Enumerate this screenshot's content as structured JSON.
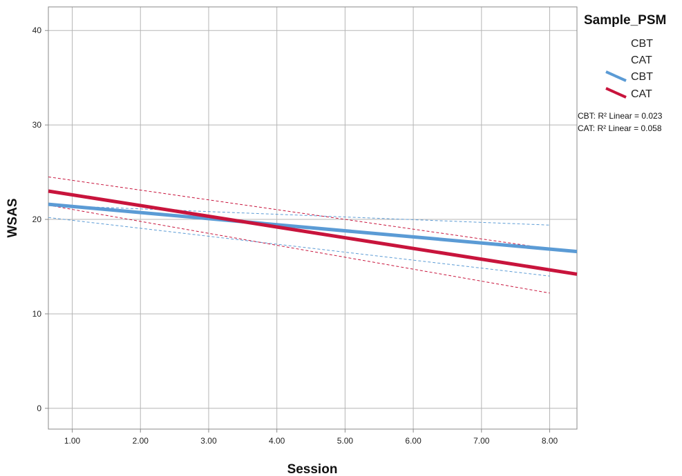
{
  "chart_data": {
    "type": "scatter",
    "title": "",
    "xlabel": "Session",
    "ylabel": "WSAS",
    "xlim": [
      0.65,
      8.4
    ],
    "ylim": [
      -2.2,
      42.5
    ],
    "x_ticks": [
      1,
      2,
      3,
      4,
      5,
      6,
      7,
      8
    ],
    "x_tick_labels": [
      "1.00",
      "2.00",
      "3.00",
      "4.00",
      "5.00",
      "6.00",
      "7.00",
      "8.00"
    ],
    "y_ticks": [
      0,
      10,
      20,
      30,
      40
    ],
    "y_tick_labels": [
      "0",
      "10",
      "20",
      "30",
      "40"
    ],
    "grid": true,
    "legend": {
      "title": "Sample_PSM",
      "placement": "right",
      "marker_entries": [
        "CBT",
        "CAT"
      ],
      "line_entries": [
        {
          "label": "CBT",
          "color": "#5b9bd5"
        },
        {
          "label": "CAT",
          "color": "#c8143c"
        }
      ]
    },
    "r2_annotations": [
      {
        "group": "CBT",
        "label": "R² Linear = 0.023"
      },
      {
        "group": "CAT",
        "label": "R² Linear = 0.058"
      }
    ],
    "series": [
      {
        "name": "CBT",
        "color": "#5b9bd5",
        "fit_line": {
          "x": [
            0.65,
            8.4
          ],
          "y": [
            21.6,
            16.6
          ]
        },
        "ci_upper": {
          "x": [
            0.65,
            8.0
          ],
          "y": [
            21.5,
            19.4
          ]
        },
        "ci_lower": {
          "x": [
            0.65,
            8.0
          ],
          "y": [
            20.2,
            14.0
          ]
        }
      },
      {
        "name": "CAT",
        "color": "#c8143c",
        "fit_line": {
          "x": [
            0.65,
            8.4
          ],
          "y": [
            23.0,
            14.2
          ]
        },
        "ci_upper": {
          "x": [
            0.65,
            8.0
          ],
          "y": [
            24.5,
            16.9
          ]
        },
        "ci_lower": {
          "x": [
            0.65,
            8.0
          ],
          "y": [
            21.5,
            12.2
          ]
        }
      }
    ]
  }
}
